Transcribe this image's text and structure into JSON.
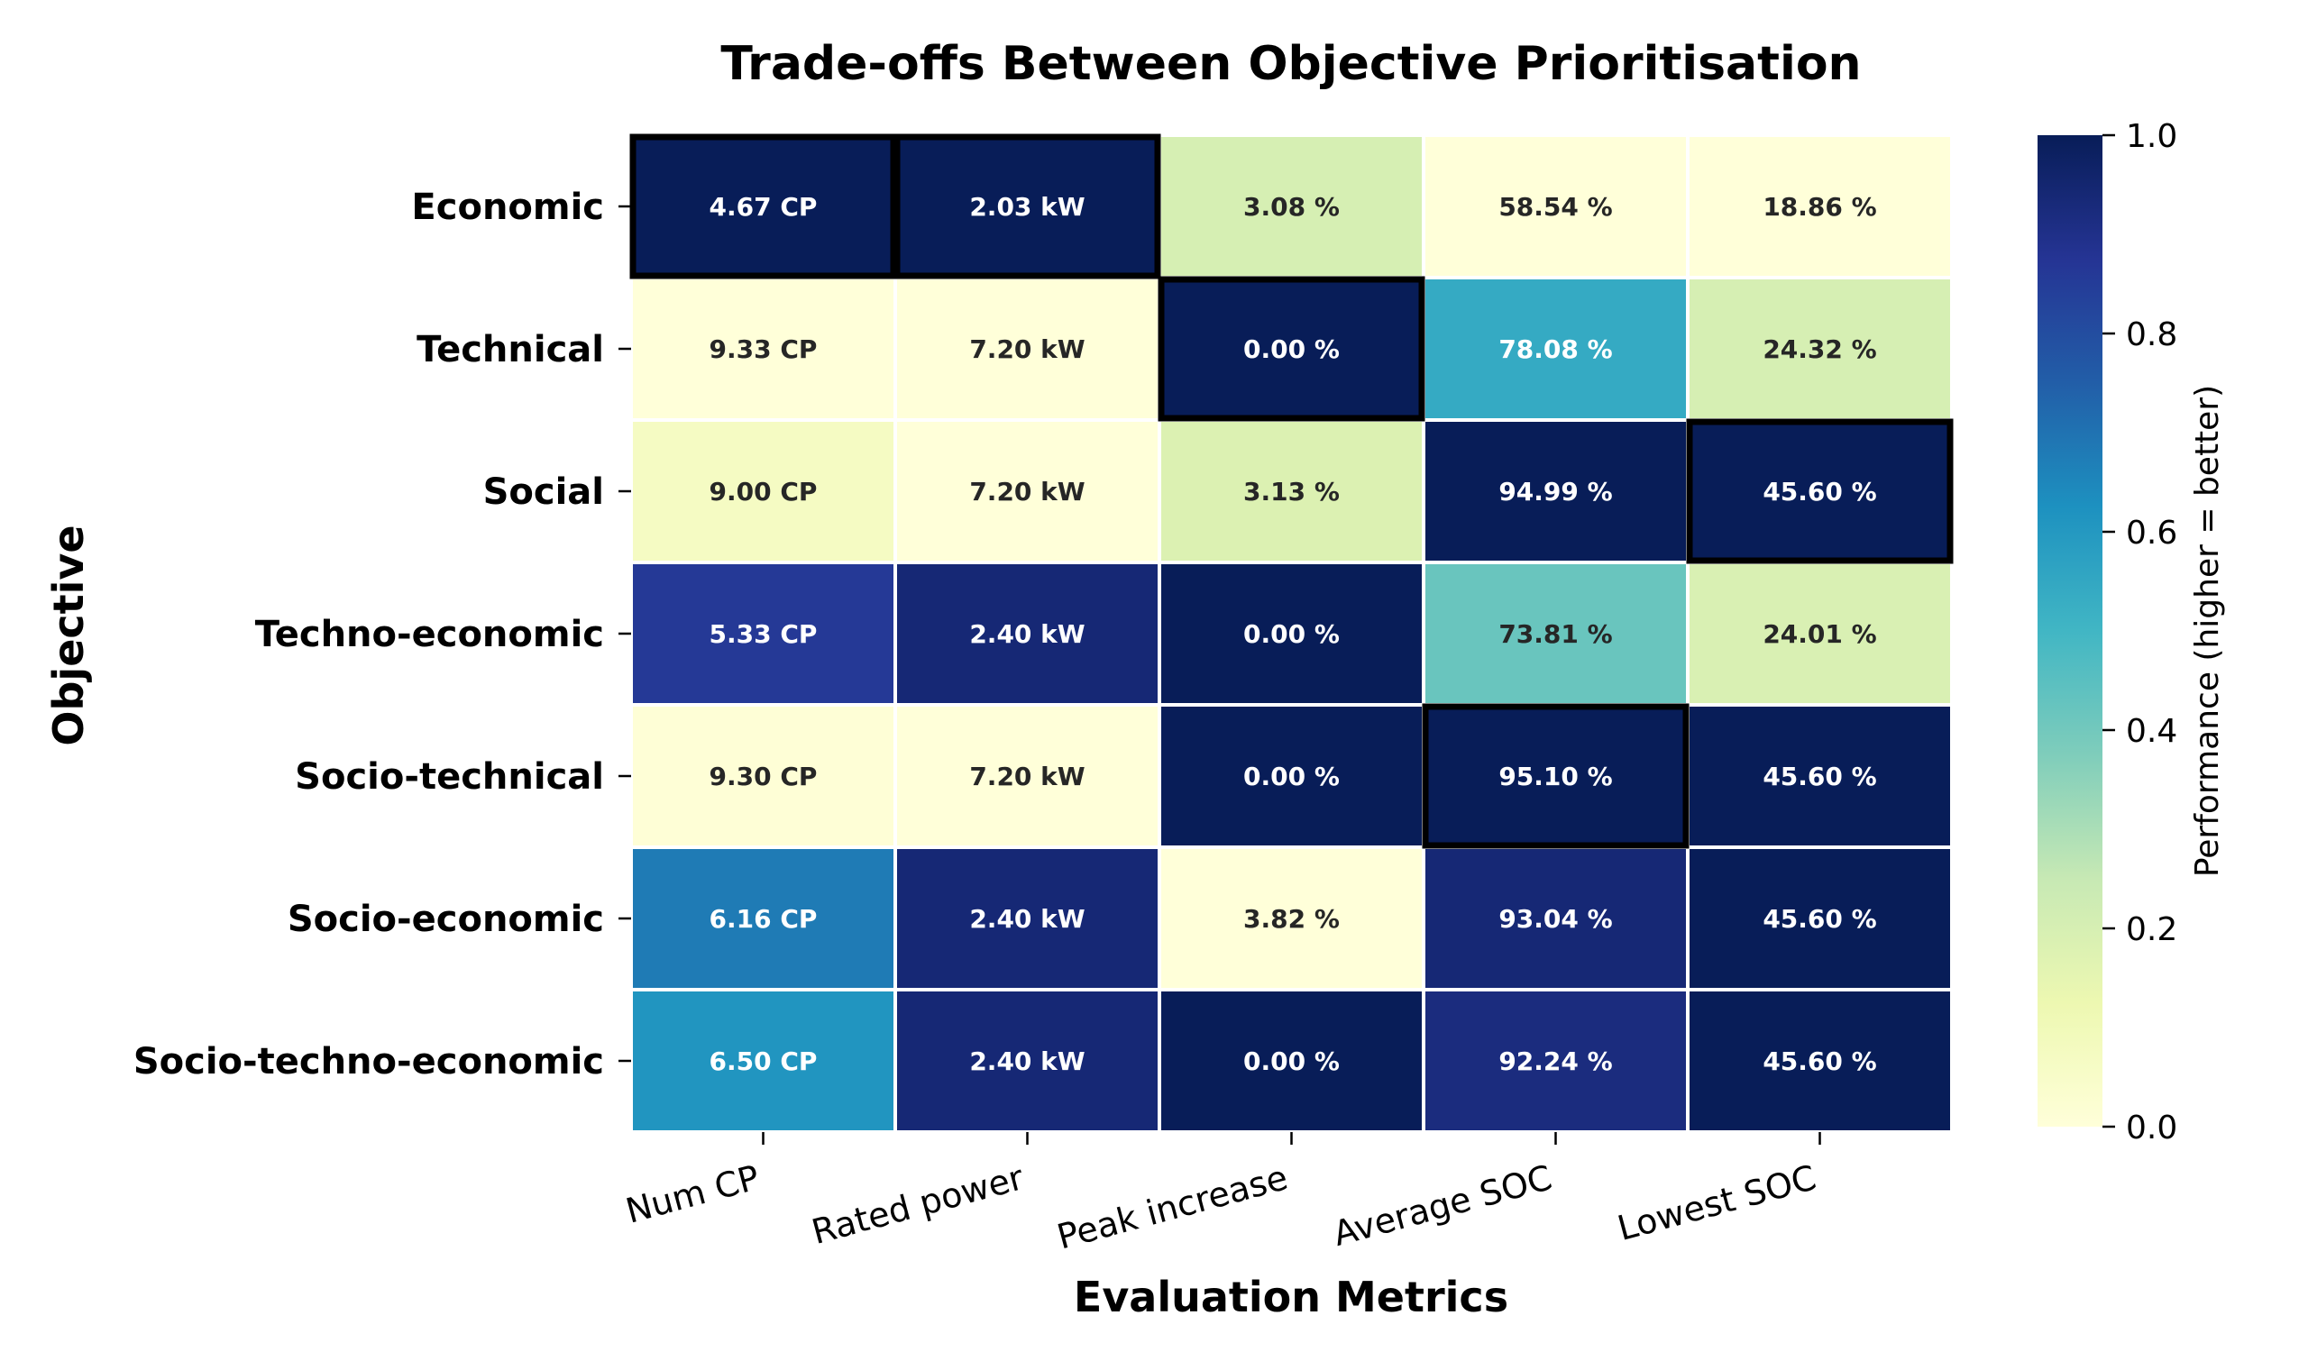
{
  "chart_data": {
    "type": "heatmap",
    "title": "Trade-offs Between Objective Prioritisation",
    "xlabel": "Evaluation Metrics",
    "ylabel": "Objective",
    "columns": [
      "Num CP",
      "Rated power",
      "Peak increase",
      "Average SOC",
      "Lowest SOC"
    ],
    "rows": [
      "Economic",
      "Technical",
      "Social",
      "Techno-economic",
      "Socio-technical",
      "Socio-economic",
      "Socio-techno-economic"
    ],
    "cell_labels": [
      [
        "4.67 CP",
        "2.03 kW",
        "3.08 %",
        "58.54 %",
        "18.86 %"
      ],
      [
        "9.33 CP",
        "7.20 kW",
        "0.00 %",
        "78.08 %",
        "24.32 %"
      ],
      [
        "9.00 CP",
        "7.20 kW",
        "3.13 %",
        "94.99 %",
        "45.60 %"
      ],
      [
        "5.33 CP",
        "2.40 kW",
        "0.00 %",
        "73.81 %",
        "24.01 %"
      ],
      [
        "9.30 CP",
        "7.20 kW",
        "0.00 %",
        "95.10 %",
        "45.60 %"
      ],
      [
        "6.16 CP",
        "2.40 kW",
        "3.82 %",
        "93.04 %",
        "45.60 %"
      ],
      [
        "6.50 CP",
        "2.40 kW",
        "0.00 %",
        "92.24 %",
        "45.60 %"
      ]
    ],
    "performance": [
      [
        1.0,
        1.0,
        0.2,
        0.0,
        0.0
      ],
      [
        0.0,
        0.0,
        1.0,
        0.54,
        0.2
      ],
      [
        0.07,
        0.0,
        0.18,
        1.0,
        1.0
      ],
      [
        0.86,
        0.94,
        1.0,
        0.42,
        0.19
      ],
      [
        0.01,
        0.0,
        1.0,
        1.0,
        1.0
      ],
      [
        0.68,
        0.94,
        0.0,
        0.94,
        1.0
      ],
      [
        0.61,
        0.94,
        1.0,
        0.92,
        1.0
      ]
    ],
    "highlighted": [
      [
        0,
        0
      ],
      [
        0,
        1
      ],
      [
        1,
        2
      ],
      [
        2,
        4
      ],
      [
        4,
        3
      ]
    ],
    "colorbar": {
      "label": "Performance (higher = better)",
      "range": [
        0.0,
        1.0
      ],
      "ticks": [
        "0.0",
        "0.2",
        "0.4",
        "0.6",
        "0.8",
        "1.0"
      ],
      "colormap": "YlGnBu",
      "stops": [
        "#ffffd9",
        "#edf8b1",
        "#c7e9b4",
        "#7fcdbb",
        "#41b6c4",
        "#1d91c0",
        "#225ea8",
        "#253494",
        "#081d58"
      ]
    },
    "legend": "none",
    "grid": false
  }
}
